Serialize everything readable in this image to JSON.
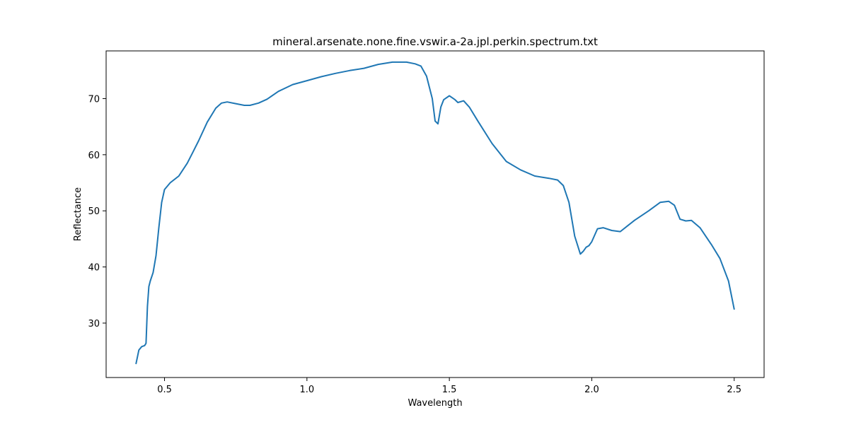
{
  "chart_data": {
    "type": "line",
    "title": "mineral.arsenate.none.fine.vswir.a-2a.jpl.perkin.spectrum.txt",
    "xlabel": "Wavelength",
    "ylabel": "Reflectance",
    "xlim": [
      0.295,
      2.605
    ],
    "ylim": [
      20.3,
      78.5
    ],
    "xticks": [
      0.5,
      1.0,
      1.5,
      2.0,
      2.5
    ],
    "xtick_labels": [
      "0.5",
      "1.0",
      "1.5",
      "2.0",
      "2.5"
    ],
    "yticks": [
      30,
      40,
      50,
      60,
      70
    ],
    "ytick_labels": [
      "30",
      "40",
      "50",
      "60",
      "70"
    ],
    "grid": false,
    "series": [
      {
        "color": "#1f77b4",
        "x": [
          0.4,
          0.41,
          0.42,
          0.43,
          0.435,
          0.44,
          0.445,
          0.45,
          0.46,
          0.47,
          0.48,
          0.49,
          0.5,
          0.52,
          0.55,
          0.58,
          0.6,
          0.62,
          0.65,
          0.68,
          0.7,
          0.72,
          0.75,
          0.78,
          0.8,
          0.83,
          0.86,
          0.9,
          0.95,
          1.0,
          1.05,
          1.1,
          1.15,
          1.2,
          1.25,
          1.3,
          1.35,
          1.38,
          1.4,
          1.42,
          1.44,
          1.45,
          1.46,
          1.47,
          1.48,
          1.5,
          1.52,
          1.53,
          1.55,
          1.57,
          1.6,
          1.65,
          1.7,
          1.75,
          1.8,
          1.85,
          1.88,
          1.9,
          1.92,
          1.94,
          1.96,
          1.97,
          1.98,
          1.99,
          2.0,
          2.02,
          2.04,
          2.07,
          2.1,
          2.15,
          2.2,
          2.24,
          2.27,
          2.29,
          2.31,
          2.33,
          2.35,
          2.38,
          2.42,
          2.45,
          2.48,
          2.5
        ],
        "y": [
          22.8,
          25.2,
          25.8,
          26.0,
          26.4,
          33.0,
          36.5,
          37.5,
          39.0,
          42.0,
          47.0,
          51.5,
          53.8,
          55.0,
          56.2,
          58.5,
          60.5,
          62.5,
          65.8,
          68.3,
          69.2,
          69.4,
          69.1,
          68.8,
          68.8,
          69.2,
          69.9,
          71.3,
          72.5,
          73.2,
          73.9,
          74.5,
          75.0,
          75.4,
          76.1,
          76.5,
          76.5,
          76.2,
          75.8,
          74.0,
          70.0,
          66.0,
          65.5,
          68.5,
          69.8,
          70.5,
          69.8,
          69.3,
          69.6,
          68.5,
          66.0,
          62.0,
          58.8,
          57.3,
          56.2,
          55.8,
          55.5,
          54.5,
          51.5,
          45.5,
          42.3,
          42.8,
          43.5,
          43.8,
          44.5,
          46.8,
          47.0,
          46.5,
          46.3,
          48.3,
          50.0,
          51.5,
          51.7,
          51.0,
          48.5,
          48.2,
          48.3,
          47.0,
          44.0,
          41.5,
          37.5,
          32.5
        ]
      }
    ]
  }
}
